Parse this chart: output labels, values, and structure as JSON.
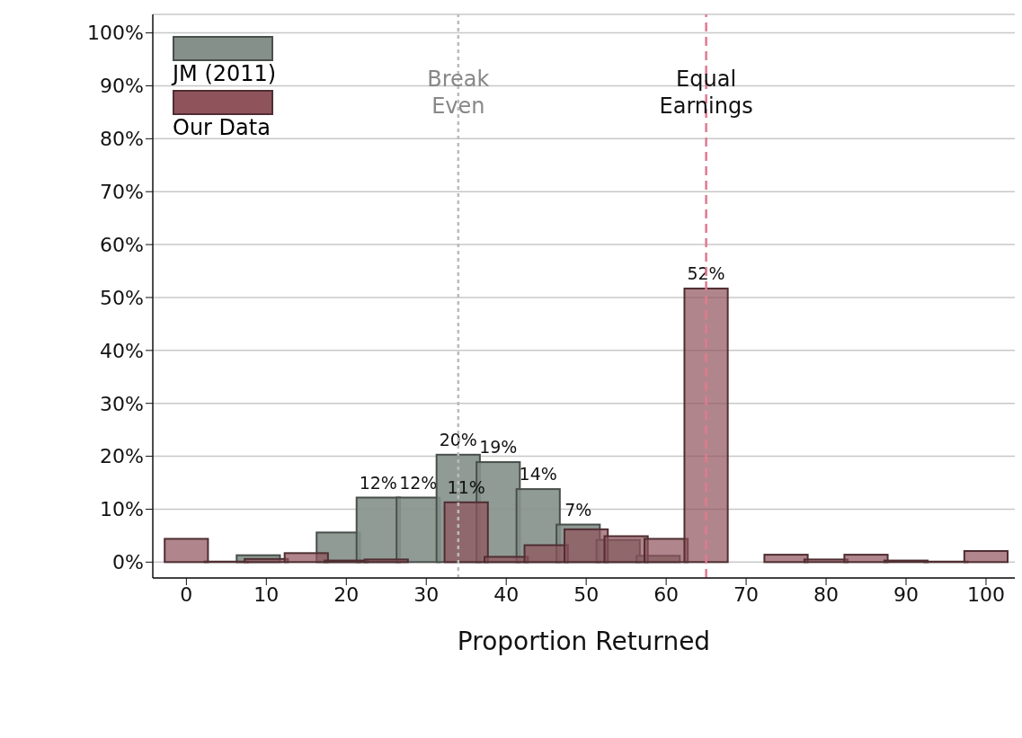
{
  "chart_data": {
    "type": "bar",
    "xlabel": "Proportion Returned",
    "series": [
      {
        "name": "JM (2011)",
        "color": "#849089",
        "x": [
          9,
          14,
          19,
          24,
          29,
          34,
          39,
          44,
          49,
          54,
          59
        ],
        "values": [
          1.3,
          null,
          5.6,
          12.2,
          12.2,
          20.3,
          18.9,
          13.8,
          7.1,
          4.2,
          1.2
        ],
        "value_labels": [
          null,
          null,
          null,
          "12%",
          "12%",
          "20%",
          "19%",
          "14%",
          "7%",
          null,
          null
        ]
      },
      {
        "name": "Our Data",
        "color": "#8f535b",
        "x": [
          0,
          5,
          10,
          15,
          20,
          25,
          35,
          40,
          45,
          50,
          55,
          60,
          65,
          75,
          80,
          85,
          90,
          95,
          100
        ],
        "values": [
          4.4,
          0.1,
          0.6,
          1.7,
          0.3,
          0.5,
          11.3,
          1.0,
          3.2,
          6.2,
          4.9,
          4.4,
          51.7,
          1.4,
          0.5,
          1.4,
          0.3,
          0.1,
          2.1
        ],
        "value_labels": [
          null,
          null,
          null,
          null,
          null,
          null,
          "11%",
          null,
          null,
          null,
          null,
          null,
          "52%",
          null,
          null,
          null,
          null,
          null,
          null
        ]
      }
    ],
    "xlim": [
      -4.2,
      103.6
    ],
    "xticks": [
      0,
      10,
      20,
      30,
      40,
      50,
      60,
      70,
      80,
      90,
      100
    ],
    "ylim": [
      -3,
      103.5
    ],
    "yticks": [
      {
        "value": 0,
        "label": "0%"
      },
      {
        "value": 10,
        "label": "10%"
      },
      {
        "value": 20,
        "label": "20%"
      },
      {
        "value": 30,
        "label": "30%"
      },
      {
        "value": 40,
        "label": "40%"
      },
      {
        "value": 50,
        "label": "50%"
      },
      {
        "value": 60,
        "label": "60%"
      },
      {
        "value": 70,
        "label": "70%"
      },
      {
        "value": 80,
        "label": "80%"
      },
      {
        "value": 90,
        "label": "90%"
      },
      {
        "value": 100,
        "label": "100%"
      }
    ],
    "grid": "y",
    "legend": "top left",
    "ref_lines": [
      {
        "axis": "x",
        "value": 34,
        "label": "Break Even",
        "color": "#bbbbbb",
        "line_style": "dotted"
      },
      {
        "axis": "x",
        "value": 65,
        "label": "Equal Earnings",
        "color": "#e07a90",
        "line_style": "dashed"
      }
    ]
  }
}
